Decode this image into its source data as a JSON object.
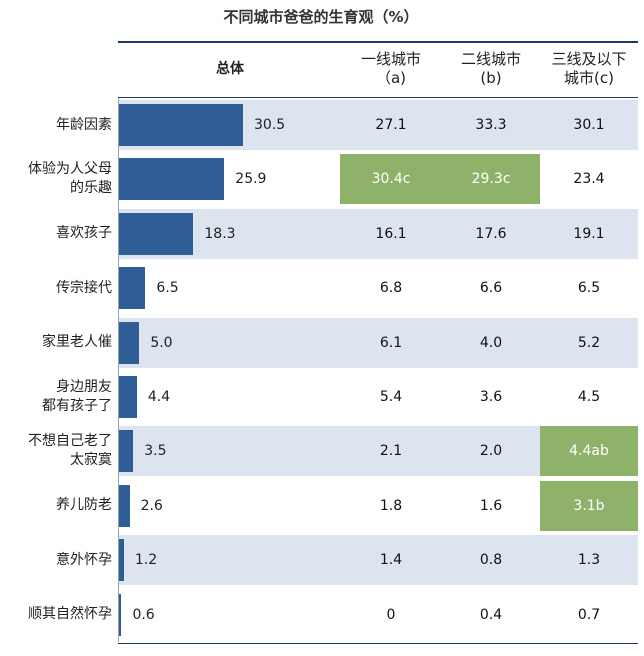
{
  "chart_data": {
    "type": "table",
    "title": "不同城市爸爸的生育观（%）",
    "columns": {
      "total": "总体",
      "tier1": "一线城市\n（a)",
      "tier2": "二线城市\n(b)",
      "tier3": "三线及以下\n城市(c)"
    },
    "xlim": [
      0,
      30.5
    ],
    "rows": [
      {
        "label": "年龄因素",
        "total": 30.5,
        "total_text": "30.5",
        "tier1": "27.1",
        "tier2": "33.3",
        "tier3": "30.1",
        "hl": [
          false,
          false,
          false
        ]
      },
      {
        "label": "体验为人父母\n的乐趣",
        "total": 25.9,
        "total_text": "25.9",
        "tier1": "30.4c",
        "tier2": "29.3c",
        "tier3": "23.4",
        "hl": [
          true,
          true,
          false
        ]
      },
      {
        "label": "喜欢孩子",
        "total": 18.3,
        "total_text": "18.3",
        "tier1": "16.1",
        "tier2": "17.6",
        "tier3": "19.1",
        "hl": [
          false,
          false,
          false
        ]
      },
      {
        "label": "传宗接代",
        "total": 6.5,
        "total_text": "6.5",
        "tier1": "6.8",
        "tier2": "6.6",
        "tier3": "6.5",
        "hl": [
          false,
          false,
          false
        ]
      },
      {
        "label": "家里老人催",
        "total": 5.0,
        "total_text": "5.0",
        "tier1": "6.1",
        "tier2": "4.0",
        "tier3": "5.2",
        "hl": [
          false,
          false,
          false
        ]
      },
      {
        "label": "身边朋友\n都有孩子了",
        "total": 4.4,
        "total_text": "4.4",
        "tier1": "5.4",
        "tier2": "3.6",
        "tier3": "4.5",
        "hl": [
          false,
          false,
          false
        ]
      },
      {
        "label": "不想自己老了\n太寂寞",
        "total": 3.5,
        "total_text": "3.5",
        "tier1": "2.1",
        "tier2": "2.0",
        "tier3": "4.4ab",
        "hl": [
          false,
          false,
          true
        ]
      },
      {
        "label": "养儿防老",
        "total": 2.6,
        "total_text": "2.6",
        "tier1": "1.8",
        "tier2": "1.6",
        "tier3": "3.1b",
        "hl": [
          false,
          false,
          true
        ]
      },
      {
        "label": "意外怀孕",
        "total": 1.2,
        "total_text": "1.2",
        "tier1": "1.4",
        "tier2": "0.8",
        "tier3": "1.3",
        "hl": [
          false,
          false,
          false
        ]
      },
      {
        "label": "顺其自然怀孕",
        "total": 0.6,
        "total_text": "0.6",
        "tier1": "0",
        "tier2": "0.4",
        "tier3": "0.7",
        "hl": [
          false,
          false,
          false
        ]
      }
    ]
  },
  "colors": {
    "bar": "#2e5e95",
    "row_shade": "#dbe4ef",
    "highlight": "#8fb26a"
  }
}
